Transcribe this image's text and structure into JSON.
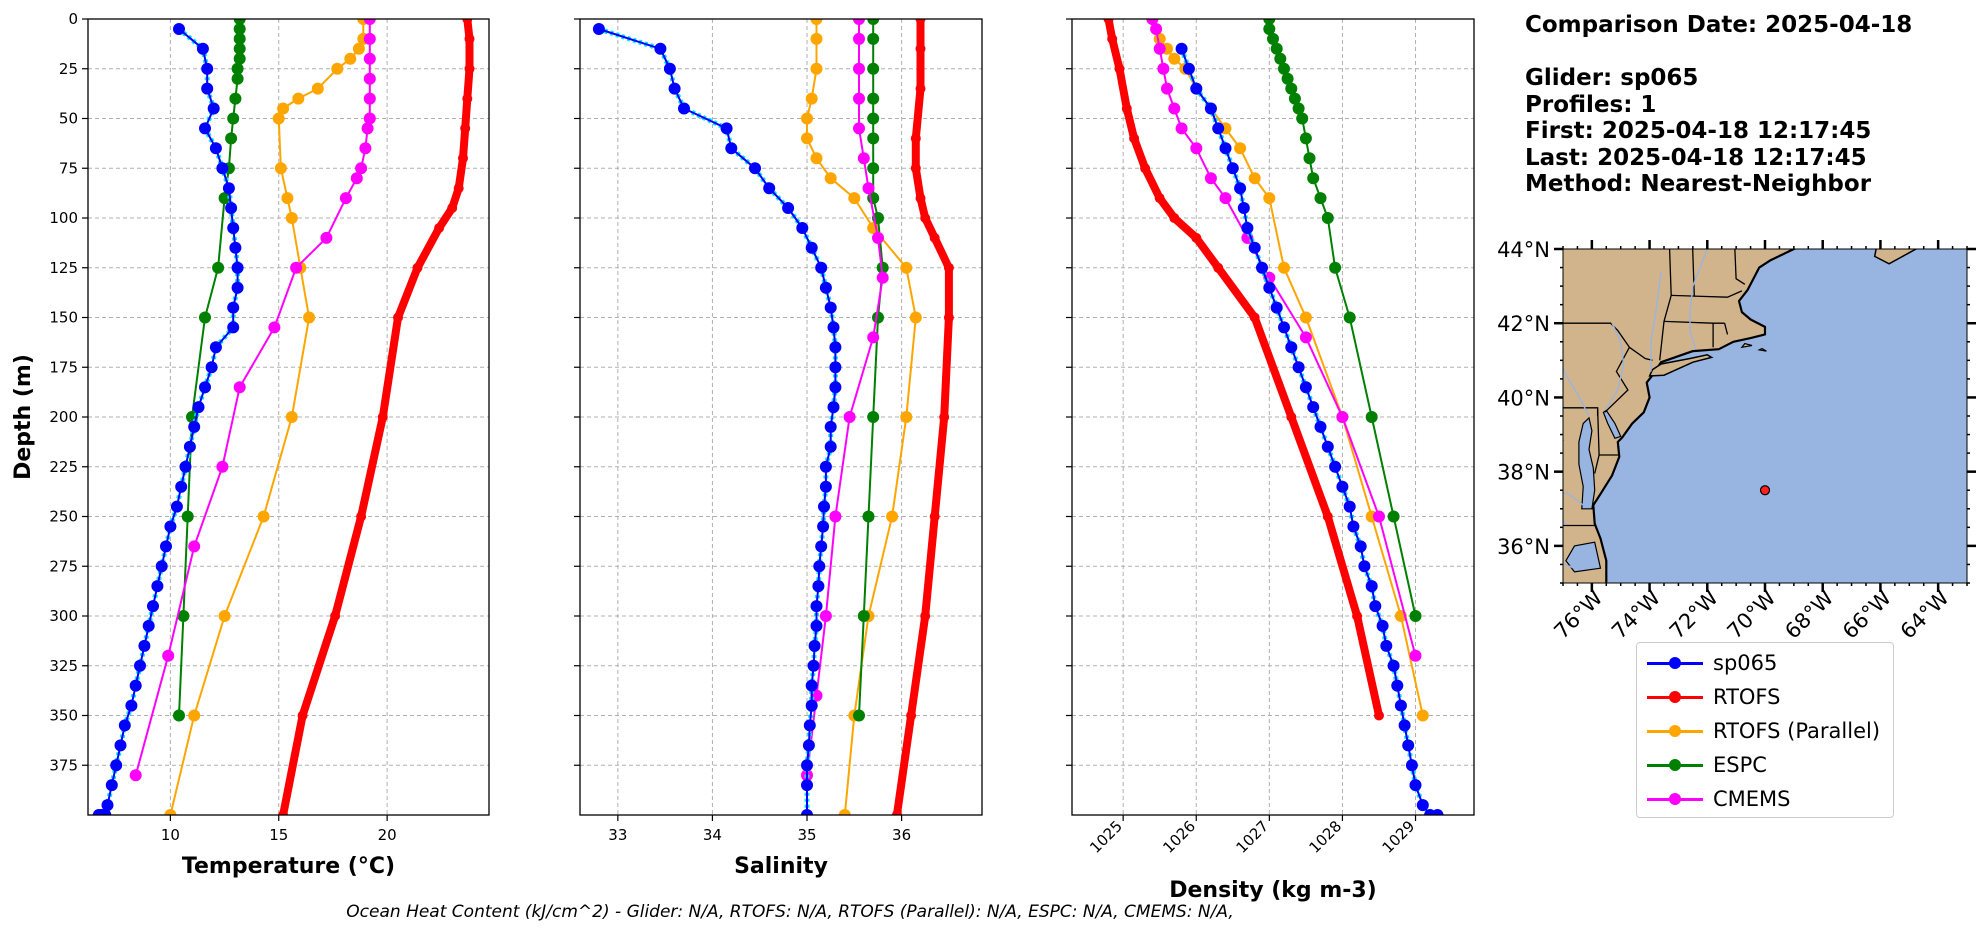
{
  "colors": {
    "sp065": "#0000ff",
    "sp065_raw": "#00e5ff",
    "rtofs": "#ff0000",
    "rtofs_parallel": "#ffa500",
    "espc": "#008000",
    "cmems": "#ff00ff",
    "grid": "#b0b0b0",
    "land": "#d2b48c",
    "water": "#98b5e1",
    "rivers": "#9ab4dc",
    "marker": "#ff2020"
  },
  "info": {
    "comparison_date": "Comparison Date: 2025-04-18",
    "glider": "Glider: sp065",
    "profiles": "Profiles: 1",
    "first": "First: 2025-04-18 12:17:45",
    "last": "Last: 2025-04-18 12:17:45",
    "method": "Method: Nearest-Neighbor"
  },
  "footer": "Ocean Heat Content (kJ/cm^2) - Glider: N/A,  RTOFS: N/A,  RTOFS (Parallel): N/A,  ESPC: N/A,  CMEMS: N/A,",
  "legend": [
    {
      "key": "sp065",
      "label": "sp065"
    },
    {
      "key": "rtofs",
      "label": "RTOFS"
    },
    {
      "key": "rtofs_parallel",
      "label": "RTOFS (Parallel)"
    },
    {
      "key": "espc",
      "label": "ESPC"
    },
    {
      "key": "cmems",
      "label": "CMEMS"
    }
  ],
  "map": {
    "lon_range": [
      -77,
      -63
    ],
    "lat_range": [
      35,
      44
    ],
    "lat_ticks": [
      {
        "v": 44,
        "label": "44°N"
      },
      {
        "v": 42,
        "label": "42°N"
      },
      {
        "v": 40,
        "label": "40°N"
      },
      {
        "v": 38,
        "label": "38°N"
      },
      {
        "v": 36,
        "label": "36°N"
      }
    ],
    "lon_ticks": [
      {
        "v": -76,
        "label": "76°W"
      },
      {
        "v": -74,
        "label": "74°W"
      },
      {
        "v": -72,
        "label": "72°W"
      },
      {
        "v": -70,
        "label": "70°W"
      },
      {
        "v": -68,
        "label": "68°W"
      },
      {
        "v": -66,
        "label": "66°W"
      },
      {
        "v": -64,
        "label": "64°W"
      }
    ],
    "glider_position": {
      "lon": -70.0,
      "lat": 37.5
    }
  },
  "chart_data": [
    {
      "type": "line",
      "xlabel": "Temperature (°C)",
      "ylabel": "Depth (m)",
      "xlim": [
        6.2,
        24.7
      ],
      "ylim": [
        400,
        0
      ],
      "x_ticks": [
        10,
        15,
        20
      ],
      "y_ticks": [
        0,
        25,
        50,
        75,
        100,
        125,
        150,
        175,
        200,
        225,
        250,
        275,
        300,
        325,
        350,
        375
      ],
      "grid": true,
      "series": [
        {
          "name": "sp065",
          "key": "sp065",
          "x": [
            10.4,
            11.5,
            11.7,
            11.7,
            12.0,
            11.6,
            12.1,
            12.4,
            12.7,
            12.8,
            12.9,
            13.0,
            13.1,
            13.1,
            12.9,
            12.9,
            12.1,
            11.9,
            11.6,
            11.3,
            11.1,
            10.9,
            10.7,
            10.5,
            10.3,
            10.0,
            9.8,
            9.6,
            9.4,
            9.2,
            9.0,
            8.8,
            8.6,
            8.4,
            8.2,
            7.9,
            7.7,
            7.5,
            7.3,
            7.1,
            7.0,
            6.9,
            6.8,
            6.7
          ],
          "y": [
            5,
            15,
            25,
            35,
            45,
            55,
            65,
            75,
            85,
            95,
            105,
            115,
            125,
            135,
            145,
            155,
            165,
            175,
            185,
            195,
            205,
            215,
            225,
            235,
            245,
            255,
            265,
            275,
            285,
            295,
            305,
            315,
            325,
            335,
            345,
            355,
            365,
            375,
            385,
            395,
            400,
            400,
            400,
            400
          ]
        },
        {
          "name": "RTOFS",
          "key": "rtofs",
          "x": [
            23.7,
            23.8,
            23.8,
            23.7,
            23.6,
            23.5,
            23.3,
            23.0,
            22.4,
            21.4,
            20.5,
            19.8,
            18.8,
            17.6,
            16.1,
            15.2
          ],
          "y": [
            0,
            10,
            25,
            40,
            55,
            70,
            85,
            95,
            105,
            125,
            150,
            200,
            250,
            300,
            350,
            400
          ]
        },
        {
          "name": "RTOFS (Parallel)",
          "key": "rtofs_parallel",
          "x": [
            18.9,
            18.9,
            18.7,
            18.3,
            17.7,
            16.8,
            15.9,
            15.2,
            15.0,
            15.1,
            15.4,
            15.6,
            16.0,
            16.4,
            15.6,
            14.3,
            12.5,
            11.1,
            10.0
          ],
          "y": [
            0,
            10,
            15,
            20,
            25,
            35,
            40,
            45,
            50,
            75,
            90,
            100,
            125,
            150,
            200,
            250,
            300,
            350,
            400
          ]
        },
        {
          "name": "ESPC",
          "key": "espc",
          "x": [
            13.2,
            13.2,
            13.2,
            13.2,
            13.2,
            13.1,
            13.1,
            13.0,
            12.9,
            12.8,
            12.7,
            12.5,
            12.2,
            11.6,
            11.0,
            10.8,
            10.6,
            10.4
          ],
          "y": [
            0,
            5,
            10,
            15,
            20,
            25,
            30,
            40,
            50,
            60,
            75,
            90,
            125,
            150,
            200,
            250,
            300,
            350
          ]
        },
        {
          "name": "CMEMS",
          "key": "cmems",
          "x": [
            19.2,
            19.2,
            19.2,
            19.2,
            19.2,
            19.2,
            19.1,
            19.0,
            18.8,
            18.6,
            18.1,
            17.2,
            15.8,
            14.8,
            13.2,
            12.4,
            11.1,
            9.9,
            8.4
          ],
          "y": [
            0,
            10,
            20,
            30,
            40,
            50,
            55,
            65,
            75,
            80,
            90,
            110,
            125,
            155,
            185,
            225,
            265,
            320,
            380
          ]
        }
      ]
    },
    {
      "type": "line",
      "xlabel": "Salinity",
      "ylabel": "",
      "xlim": [
        32.6,
        36.85
      ],
      "ylim": [
        400,
        0
      ],
      "x_ticks": [
        33,
        34,
        35,
        36
      ],
      "y_ticks": [
        0,
        25,
        50,
        75,
        100,
        125,
        150,
        175,
        200,
        225,
        250,
        275,
        300,
        325,
        350,
        375
      ],
      "grid": true,
      "series": [
        {
          "name": "sp065",
          "key": "sp065",
          "x": [
            32.8,
            33.45,
            33.55,
            33.6,
            33.7,
            34.15,
            34.2,
            34.45,
            34.6,
            34.8,
            34.95,
            35.05,
            35.15,
            35.2,
            35.25,
            35.28,
            35.3,
            35.3,
            35.3,
            35.28,
            35.25,
            35.25,
            35.2,
            35.2,
            35.18,
            35.17,
            35.15,
            35.13,
            35.12,
            35.1,
            35.1,
            35.08,
            35.07,
            35.05,
            35.05,
            35.03,
            35.02,
            35.0,
            35.0,
            35.0
          ],
          "y": [
            5,
            15,
            25,
            35,
            45,
            55,
            65,
            75,
            85,
            95,
            105,
            115,
            125,
            135,
            145,
            155,
            165,
            175,
            185,
            195,
            205,
            215,
            225,
            235,
            245,
            255,
            265,
            275,
            285,
            295,
            305,
            315,
            325,
            335,
            345,
            355,
            365,
            375,
            385,
            400
          ]
        },
        {
          "name": "RTOFS",
          "key": "rtofs",
          "x": [
            36.2,
            36.2,
            36.2,
            36.15,
            36.15,
            36.2,
            36.25,
            36.35,
            36.5,
            36.5,
            36.45,
            36.35,
            36.25,
            36.1,
            35.95
          ],
          "y": [
            0,
            15,
            35,
            60,
            75,
            90,
            100,
            110,
            125,
            150,
            200,
            250,
            300,
            350,
            400
          ]
        },
        {
          "name": "RTOFS (Parallel)",
          "key": "rtofs_parallel",
          "x": [
            35.1,
            35.1,
            35.1,
            35.05,
            35.0,
            35.0,
            35.1,
            35.25,
            35.5,
            35.7,
            36.05,
            36.15,
            36.05,
            35.9,
            35.65,
            35.5,
            35.4
          ],
          "y": [
            0,
            10,
            25,
            40,
            50,
            60,
            70,
            80,
            90,
            105,
            125,
            150,
            200,
            250,
            300,
            350,
            400
          ]
        },
        {
          "name": "ESPC",
          "key": "espc",
          "x": [
            35.7,
            35.7,
            35.7,
            35.7,
            35.7,
            35.7,
            35.7,
            35.7,
            35.75,
            35.8,
            35.75,
            35.7,
            35.65,
            35.6,
            35.55
          ],
          "y": [
            0,
            10,
            25,
            40,
            50,
            60,
            75,
            90,
            100,
            125,
            150,
            200,
            250,
            300,
            350
          ]
        },
        {
          "name": "CMEMS",
          "key": "cmems",
          "x": [
            35.55,
            35.55,
            35.55,
            35.55,
            35.55,
            35.6,
            35.65,
            35.75,
            35.8,
            35.7,
            35.45,
            35.3,
            35.2,
            35.1,
            35.0
          ],
          "y": [
            0,
            10,
            25,
            40,
            55,
            70,
            85,
            110,
            130,
            160,
            200,
            250,
            300,
            340,
            380
          ]
        }
      ]
    },
    {
      "type": "line",
      "xlabel": "Density (kg m-3)",
      "ylabel": "",
      "xlim": [
        1024.3,
        1029.8
      ],
      "ylim": [
        400,
        0
      ],
      "x_ticks": [
        1025,
        1026,
        1027,
        1028,
        1029
      ],
      "y_ticks": [
        0,
        25,
        50,
        75,
        100,
        125,
        150,
        175,
        200,
        225,
        250,
        275,
        300,
        325,
        350,
        375
      ],
      "grid": true,
      "series": [
        {
          "name": "sp065",
          "key": "sp065",
          "x": [
            1025.8,
            1025.9,
            1026.0,
            1026.2,
            1026.3,
            1026.4,
            1026.5,
            1026.6,
            1026.65,
            1026.7,
            1026.8,
            1026.9,
            1027.0,
            1027.1,
            1027.2,
            1027.3,
            1027.4,
            1027.5,
            1027.6,
            1027.7,
            1027.8,
            1027.9,
            1028.0,
            1028.1,
            1028.15,
            1028.25,
            1028.3,
            1028.4,
            1028.45,
            1028.55,
            1028.6,
            1028.7,
            1028.75,
            1028.8,
            1028.85,
            1028.9,
            1028.95,
            1029.0,
            1029.1,
            1029.2,
            1029.3
          ],
          "y": [
            15,
            25,
            35,
            45,
            55,
            65,
            75,
            85,
            95,
            105,
            115,
            125,
            135,
            145,
            155,
            165,
            175,
            185,
            195,
            205,
            215,
            225,
            235,
            245,
            255,
            265,
            275,
            285,
            295,
            305,
            315,
            325,
            335,
            345,
            355,
            365,
            375,
            385,
            395,
            400,
            400
          ]
        },
        {
          "name": "RTOFS",
          "key": "rtofs",
          "x": [
            1024.8,
            1024.85,
            1024.95,
            1025.05,
            1025.15,
            1025.3,
            1025.5,
            1025.7,
            1026.0,
            1026.3,
            1026.8,
            1027.3,
            1027.8,
            1028.2,
            1028.5
          ],
          "y": [
            0,
            10,
            25,
            45,
            60,
            75,
            90,
            100,
            110,
            125,
            150,
            200,
            250,
            300,
            350
          ]
        },
        {
          "name": "RTOFS (Parallel)",
          "key": "rtofs_parallel",
          "x": [
            1025.4,
            1025.5,
            1025.6,
            1025.7,
            1025.85,
            1026.0,
            1026.2,
            1026.4,
            1026.6,
            1026.8,
            1027.0,
            1027.2,
            1027.5,
            1028.0,
            1028.4,
            1028.8,
            1029.1
          ],
          "y": [
            0,
            10,
            15,
            20,
            25,
            35,
            45,
            55,
            65,
            80,
            90,
            125,
            150,
            200,
            250,
            300,
            350
          ]
        },
        {
          "name": "ESPC",
          "key": "espc",
          "x": [
            1027.0,
            1027.0,
            1027.05,
            1027.1,
            1027.15,
            1027.2,
            1027.25,
            1027.3,
            1027.35,
            1027.4,
            1027.45,
            1027.5,
            1027.55,
            1027.6,
            1027.7,
            1027.8,
            1027.9,
            1028.1,
            1028.4,
            1028.7,
            1029.0
          ],
          "y": [
            0,
            5,
            10,
            15,
            20,
            25,
            30,
            35,
            40,
            45,
            50,
            60,
            70,
            80,
            90,
            100,
            125,
            150,
            200,
            250,
            300
          ]
        },
        {
          "name": "CMEMS",
          "key": "cmems",
          "x": [
            1025.4,
            1025.45,
            1025.5,
            1025.55,
            1025.6,
            1025.7,
            1025.8,
            1026.0,
            1026.2,
            1026.4,
            1026.7,
            1027.0,
            1027.5,
            1028.0,
            1028.5,
            1029.0
          ],
          "y": [
            0,
            5,
            15,
            25,
            35,
            45,
            55,
            65,
            80,
            90,
            110,
            130,
            160,
            200,
            250,
            320
          ]
        }
      ]
    }
  ]
}
